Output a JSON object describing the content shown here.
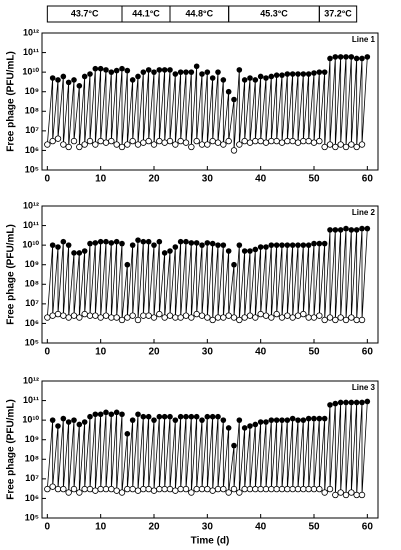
{
  "chart_data": [
    {
      "type": "line",
      "label": "Line 1",
      "y_label": "Free phage (PFU/mL)",
      "log": true,
      "bands": [
        {
          "label": "43.7°C",
          "start": 0,
          "end": 14
        },
        {
          "label": "44.1°C",
          "start": 14,
          "end": 23
        },
        {
          "label": "44.8°C",
          "start": 23,
          "end": 34
        },
        {
          "label": "45.3°C",
          "start": 34,
          "end": 51
        },
        {
          "label": "37.2°C",
          "start": 51,
          "end": 58
        }
      ],
      "xlim": [
        -1,
        62
      ],
      "xticks": [
        0,
        10,
        20,
        30,
        40,
        50,
        60
      ],
      "ylim": [
        100000.0,
        1000000000000.0
      ],
      "yticks": [
        {
          "value": 100000.0,
          "label": "10⁵"
        },
        {
          "value": 1000000.0,
          "label": "10⁶"
        },
        {
          "value": 10000000.0,
          "label": "10⁷"
        },
        {
          "value": 100000000.0,
          "label": "10⁸"
        },
        {
          "value": 1000000000.0,
          "label": "10⁹"
        },
        {
          "value": 10000000000.0,
          "label": "10¹⁰"
        },
        {
          "value": 100000000000.0,
          "label": "10¹¹"
        },
        {
          "value": 1000000000000.0,
          "label": "10¹²"
        }
      ],
      "x_low": [
        0,
        1,
        2,
        3,
        4,
        5,
        6,
        7,
        8,
        9,
        10,
        11,
        12,
        13,
        14,
        15,
        16,
        17,
        18,
        19,
        20,
        21,
        22,
        23,
        24,
        25,
        26,
        27,
        28,
        29,
        30,
        31,
        32,
        33,
        34,
        35,
        36,
        37,
        38,
        39,
        40,
        41,
        42,
        43,
        44,
        45,
        46,
        47,
        48,
        49,
        50,
        51,
        52,
        53,
        54,
        55,
        56,
        57,
        58,
        59
      ],
      "low": [
        2000000.0,
        3000000.0,
        4000000.0,
        2000000.0,
        1500000.0,
        3000000.0,
        1500000.0,
        2000000.0,
        3000000.0,
        2000000.0,
        3000000.0,
        2500000.0,
        3000000.0,
        2000000.0,
        1500000.0,
        2000000.0,
        3000000.0,
        2000000.0,
        2500000.0,
        3000000.0,
        2000000.0,
        3000000.0,
        2500000.0,
        3000000.0,
        2000000.0,
        3000000.0,
        2500000.0,
        1500000.0,
        3000000.0,
        2000000.0,
        2000000.0,
        3000000.0,
        2500000.0,
        2000000.0,
        3000000.0,
        1000000.0,
        2000000.0,
        3000000.0,
        2500000.0,
        3000000.0,
        3000000.0,
        2500000.0,
        3000000.0,
        3000000.0,
        2500000.0,
        3000000.0,
        3000000.0,
        2500000.0,
        3000000.0,
        3000000.0,
        2500000.0,
        3000000.0,
        1500000.0,
        2000000.0,
        1500000.0,
        2000000.0,
        1500000.0,
        2000000.0,
        1500000.0,
        2000000.0
      ],
      "x_high": [
        1,
        2,
        3,
        4,
        5,
        6,
        7,
        8,
        9,
        10,
        11,
        12,
        13,
        14,
        15,
        16,
        17,
        18,
        19,
        20,
        21,
        22,
        23,
        24,
        25,
        26,
        27,
        28,
        29,
        30,
        31,
        32,
        33,
        34,
        35,
        36,
        37,
        38,
        39,
        40,
        41,
        42,
        43,
        44,
        45,
        46,
        47,
        48,
        49,
        50,
        51,
        52,
        53,
        54,
        55,
        56,
        57,
        58,
        59,
        60
      ],
      "high": [
        5000000000.0,
        4000000000.0,
        6000000000.0,
        3000000000.0,
        4000000000.0,
        2000000000.0,
        6000000000.0,
        8000000000.0,
        15000000000.0,
        15000000000.0,
        13000000000.0,
        10000000000.0,
        12000000000.0,
        15000000000.0,
        12000000000.0,
        4000000000.0,
        6000000000.0,
        10000000000.0,
        13000000000.0,
        10000000000.0,
        13000000000.0,
        13000000000.0,
        13000000000.0,
        8000000000.0,
        10000000000.0,
        10000000000.0,
        10000000000.0,
        20000000000.0,
        8000000000.0,
        10000000000.0,
        5000000000.0,
        10000000000.0,
        4000000000.0,
        1000000000.0,
        400000000.0,
        13000000000.0,
        4000000000.0,
        5000000000.0,
        4000000000.0,
        6000000000.0,
        5000000000.0,
        6000000000.0,
        7000000000.0,
        7000000000.0,
        8000000000.0,
        8000000000.0,
        8000000000.0,
        8000000000.0,
        8000000000.0,
        9000000000.0,
        10000000000.0,
        10000000000.0,
        50000000000.0,
        60000000000.0,
        60000000000.0,
        60000000000.0,
        60000000000.0,
        50000000000.0,
        50000000000.0,
        60000000000.0
      ]
    },
    {
      "type": "line",
      "label": "Line 2",
      "y_label": "Free phage (PFU/mL)",
      "log": true,
      "xlim": [
        -1,
        62
      ],
      "xticks": [
        0,
        10,
        20,
        30,
        40,
        50,
        60
      ],
      "ylim": [
        100000.0,
        1000000000000.0
      ],
      "yticks": [
        {
          "value": 100000.0,
          "label": "10⁵"
        },
        {
          "value": 1000000.0,
          "label": "10⁶"
        },
        {
          "value": 10000000.0,
          "label": "10⁷"
        },
        {
          "value": 100000000.0,
          "label": "10⁸"
        },
        {
          "value": 1000000000.0,
          "label": "10⁹"
        },
        {
          "value": 10000000000.0,
          "label": "10¹⁰"
        },
        {
          "value": 100000000000.0,
          "label": "10¹¹"
        },
        {
          "value": 1000000000000.0,
          "label": "10¹²"
        }
      ],
      "x_low": [
        0,
        1,
        2,
        3,
        4,
        5,
        6,
        7,
        8,
        9,
        10,
        11,
        12,
        13,
        14,
        15,
        16,
        17,
        18,
        19,
        20,
        21,
        22,
        23,
        24,
        25,
        26,
        27,
        28,
        29,
        30,
        31,
        32,
        33,
        34,
        35,
        36,
        37,
        38,
        39,
        40,
        41,
        42,
        43,
        44,
        45,
        46,
        47,
        48,
        49,
        50,
        51,
        52,
        53,
        54,
        55,
        56,
        57,
        58,
        59
      ],
      "low": [
        2000000.0,
        2500000.0,
        3000000.0,
        2500000.0,
        2000000.0,
        2500000.0,
        2000000.0,
        3000000.0,
        2500000.0,
        2500000.0,
        2000000.0,
        2500000.0,
        2000000.0,
        2000000.0,
        1500000.0,
        2000000.0,
        2500000.0,
        1500000.0,
        2500000.0,
        2500000.0,
        2000000.0,
        3000000.0,
        2000000.0,
        2500000.0,
        2000000.0,
        2000000.0,
        2500000.0,
        2000000.0,
        3000000.0,
        2500000.0,
        2000000.0,
        1500000.0,
        2000000.0,
        2000000.0,
        2500000.0,
        2000000.0,
        1500000.0,
        2000000.0,
        2500000.0,
        2000000.0,
        3000000.0,
        2500000.0,
        2000000.0,
        3000000.0,
        2000000.0,
        2500000.0,
        2000000.0,
        2500000.0,
        3000000.0,
        2000000.0,
        2000000.0,
        2500000.0,
        1500000.0,
        2000000.0,
        1500000.0,
        2000000.0,
        1500000.0,
        2000000.0,
        1500000.0,
        1500000.0
      ],
      "x_high": [
        1,
        2,
        3,
        4,
        5,
        6,
        7,
        8,
        9,
        10,
        11,
        12,
        13,
        14,
        15,
        16,
        17,
        18,
        19,
        20,
        21,
        22,
        23,
        24,
        25,
        26,
        27,
        28,
        29,
        30,
        31,
        32,
        33,
        34,
        35,
        36,
        37,
        38,
        39,
        40,
        41,
        42,
        43,
        44,
        45,
        46,
        47,
        48,
        49,
        50,
        51,
        52,
        53,
        54,
        55,
        56,
        57,
        58,
        59,
        60
      ],
      "high": [
        10000000000.0,
        8000000000.0,
        15000000000.0,
        10000000000.0,
        4000000000.0,
        4000000000.0,
        5000000000.0,
        12000000000.0,
        13000000000.0,
        15000000000.0,
        15000000000.0,
        13000000000.0,
        15000000000.0,
        12000000000.0,
        1000000000.0,
        10000000000.0,
        18000000000.0,
        15000000000.0,
        15000000000.0,
        10000000000.0,
        15000000000.0,
        4000000000.0,
        5000000000.0,
        8000000000.0,
        15000000000.0,
        15000000000.0,
        13000000000.0,
        13000000000.0,
        10000000000.0,
        13000000000.0,
        12000000000.0,
        10000000000.0,
        10000000000.0,
        5000000000.0,
        1000000000.0,
        10000000000.0,
        5000000000.0,
        5000000000.0,
        6000000000.0,
        8000000000.0,
        8000000000.0,
        10000000000.0,
        10000000000.0,
        10000000000.0,
        10000000000.0,
        10000000000.0,
        10000000000.0,
        10000000000.0,
        10000000000.0,
        12000000000.0,
        12000000000.0,
        12000000000.0,
        60000000000.0,
        60000000000.0,
        60000000000.0,
        70000000000.0,
        60000000000.0,
        60000000000.0,
        70000000000.0,
        70000000000.0
      ]
    },
    {
      "type": "line",
      "label": "Line 3",
      "y_label": "Free phage (PFU/mL)",
      "x_label": "Time (d)",
      "log": true,
      "xlim": [
        -1,
        62
      ],
      "xticks": [
        0,
        10,
        20,
        30,
        40,
        50,
        60
      ],
      "ylim": [
        100000.0,
        1000000000000.0
      ],
      "yticks": [
        {
          "value": 100000.0,
          "label": "10⁵"
        },
        {
          "value": 1000000.0,
          "label": "10⁶"
        },
        {
          "value": 10000000.0,
          "label": "10⁷"
        },
        {
          "value": 100000000.0,
          "label": "10⁸"
        },
        {
          "value": 1000000000.0,
          "label": "10⁹"
        },
        {
          "value": 10000000000.0,
          "label": "10¹⁰"
        },
        {
          "value": 100000000000.0,
          "label": "10¹¹"
        },
        {
          "value": 1000000000000.0,
          "label": "10¹²"
        }
      ],
      "x_low": [
        0,
        1,
        2,
        3,
        4,
        5,
        6,
        7,
        8,
        9,
        10,
        11,
        12,
        13,
        14,
        15,
        16,
        17,
        18,
        19,
        20,
        21,
        22,
        23,
        24,
        25,
        26,
        27,
        28,
        29,
        30,
        31,
        32,
        33,
        34,
        35,
        36,
        37,
        38,
        39,
        40,
        41,
        42,
        43,
        44,
        45,
        46,
        47,
        48,
        49,
        50,
        51,
        52,
        53,
        54,
        55,
        56,
        57,
        58,
        59
      ],
      "low": [
        3000000.0,
        4000000.0,
        3000000.0,
        3000000.0,
        2000000.0,
        3000000.0,
        2000000.0,
        3000000.0,
        3000000.0,
        2500000.0,
        3000000.0,
        3000000.0,
        3000000.0,
        2500000.0,
        2000000.0,
        3000000.0,
        3000000.0,
        2500000.0,
        3000000.0,
        3000000.0,
        2500000.0,
        3000000.0,
        3000000.0,
        3000000.0,
        2500000.0,
        3000000.0,
        3000000.0,
        2000000.0,
        3000000.0,
        3000000.0,
        3000000.0,
        2500000.0,
        3000000.0,
        3000000.0,
        2000000.0,
        3000000.0,
        2000000.0,
        3000000.0,
        3000000.0,
        3000000.0,
        3000000.0,
        3000000.0,
        3000000.0,
        3000000.0,
        3000000.0,
        3000000.0,
        3000000.0,
        3000000.0,
        3000000.0,
        3000000.0,
        3000000.0,
        3000000.0,
        2000000.0,
        3000000.0,
        1500000.0,
        2000000.0,
        1500000.0,
        2000000.0,
        1500000.0,
        1500000.0
      ],
      "x_high": [
        1,
        2,
        3,
        4,
        5,
        6,
        7,
        8,
        9,
        10,
        11,
        12,
        13,
        14,
        15,
        16,
        17,
        18,
        19,
        20,
        21,
        22,
        23,
        24,
        25,
        26,
        27,
        28,
        29,
        30,
        31,
        32,
        33,
        34,
        35,
        36,
        37,
        38,
        39,
        40,
        41,
        42,
        43,
        44,
        45,
        46,
        47,
        48,
        49,
        50,
        51,
        52,
        53,
        54,
        55,
        56,
        57,
        58,
        59,
        60
      ],
      "high": [
        10000000000.0,
        5000000000.0,
        12000000000.0,
        8000000000.0,
        10000000000.0,
        6000000000.0,
        8000000000.0,
        15000000000.0,
        20000000000.0,
        20000000000.0,
        25000000000.0,
        20000000000.0,
        25000000000.0,
        20000000000.0,
        2000000000.0,
        10000000000.0,
        20000000000.0,
        15000000000.0,
        15000000000.0,
        10000000000.0,
        15000000000.0,
        15000000000.0,
        15000000000.0,
        10000000000.0,
        15000000000.0,
        15000000000.0,
        15000000000.0,
        15000000000.0,
        10000000000.0,
        15000000000.0,
        15000000000.0,
        15000000000.0,
        10000000000.0,
        4000000000.0,
        500000000.0,
        10000000000.0,
        4000000000.0,
        5000000000.0,
        6000000000.0,
        8000000000.0,
        8000000000.0,
        10000000000.0,
        10000000000.0,
        10000000000.0,
        10000000000.0,
        12000000000.0,
        10000000000.0,
        10000000000.0,
        12000000000.0,
        12000000000.0,
        12000000000.0,
        12000000000.0,
        60000000000.0,
        70000000000.0,
        80000000000.0,
        80000000000.0,
        80000000000.0,
        80000000000.0,
        80000000000.0,
        90000000000.0
      ]
    }
  ]
}
